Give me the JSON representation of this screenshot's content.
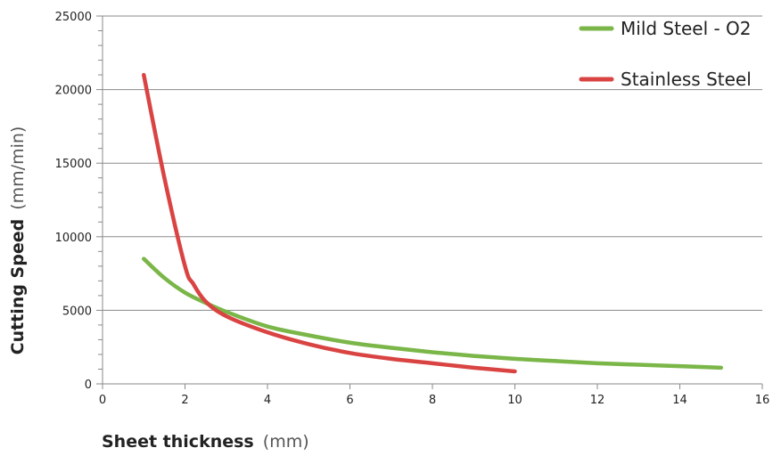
{
  "chart_data": {
    "type": "line",
    "title": "",
    "xlabel": {
      "main": "Sheet thickness",
      "unit": "(mm)"
    },
    "ylabel": {
      "main": "Cutting Speed",
      "unit": "(mm/min)"
    },
    "xlim": [
      0,
      16
    ],
    "ylim": [
      0,
      25000
    ],
    "x_ticks": [
      0,
      2,
      4,
      6,
      8,
      10,
      12,
      14,
      16
    ],
    "y_ticks": [
      0,
      5000,
      10000,
      15000,
      20000,
      25000
    ],
    "grid": "horizontal",
    "legend_position": "top-right",
    "series": [
      {
        "name": "Mild Steel - O2",
        "color": "#7ab648",
        "x": [
          1,
          1.5,
          2,
          2.5,
          3,
          4,
          5,
          6,
          7,
          8,
          9,
          10,
          11,
          12,
          13,
          14,
          15
        ],
        "y": [
          8500,
          7200,
          6200,
          5500,
          4900,
          3900,
          3300,
          2800,
          2450,
          2150,
          1900,
          1700,
          1550,
          1400,
          1300,
          1200,
          1100
        ]
      },
      {
        "name": "Stainless Steel",
        "color": "#d94443",
        "x": [
          1,
          1.5,
          2,
          2.2,
          2.5,
          3,
          4,
          5,
          6,
          7,
          8,
          9,
          10
        ],
        "y": [
          21000,
          14000,
          8000,
          6800,
          5600,
          4600,
          3500,
          2700,
          2100,
          1700,
          1400,
          1100,
          850
        ]
      }
    ]
  }
}
